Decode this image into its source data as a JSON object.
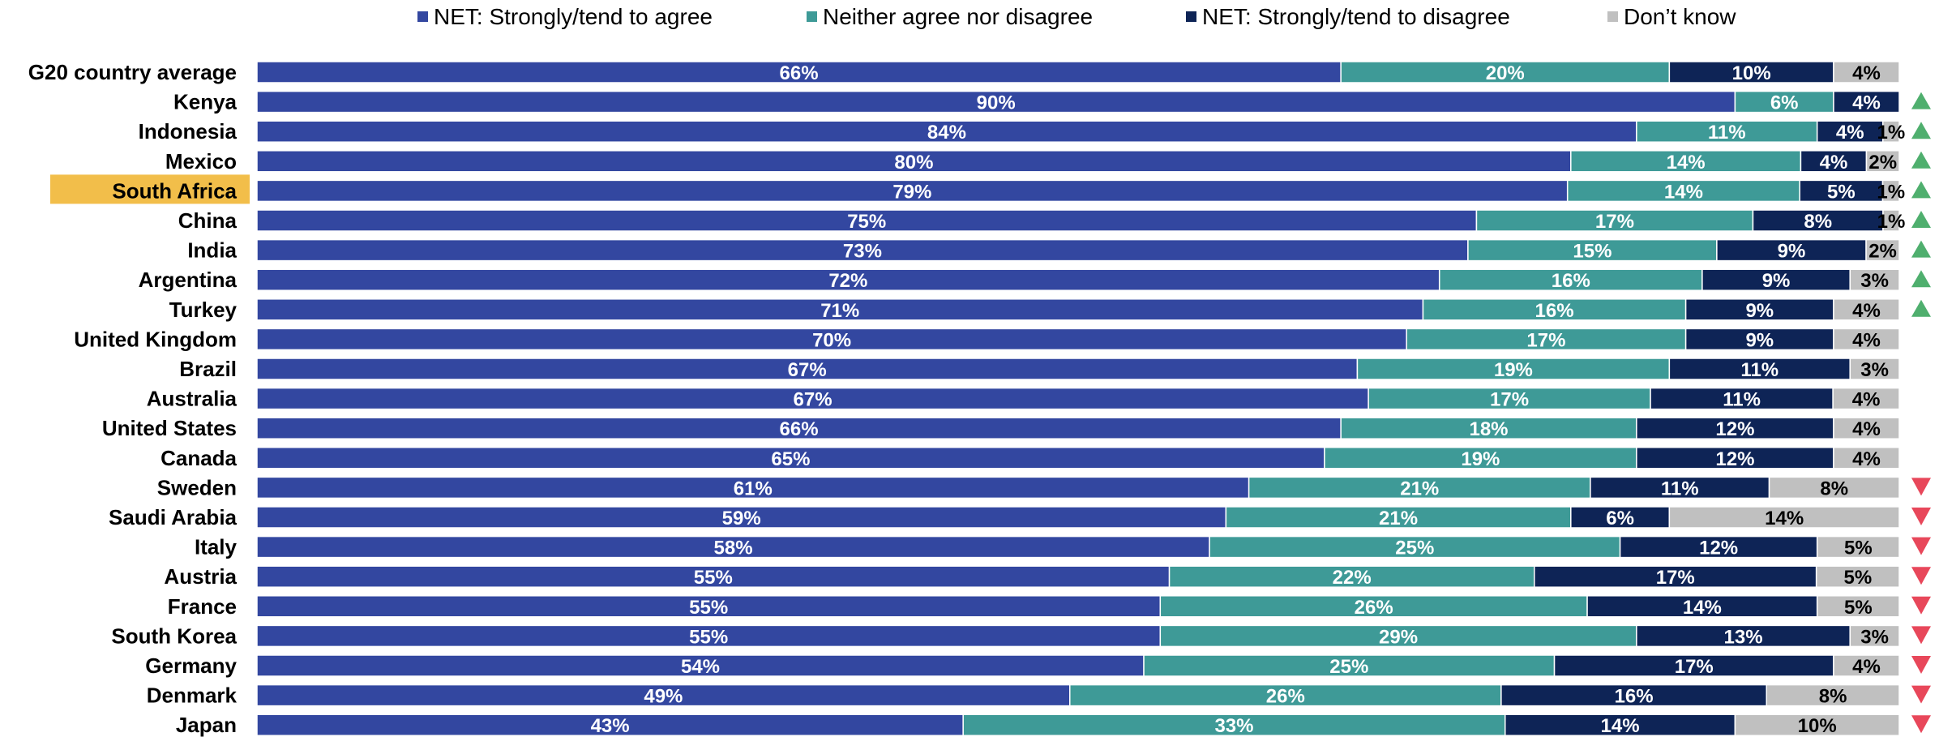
{
  "chart_data": {
    "type": "bar",
    "orientation": "horizontal",
    "stacked": "100%",
    "legend_position": "top",
    "categories": [
      "G20 country average",
      "Kenya",
      "Indonesia",
      "Mexico",
      "South Africa",
      "China",
      "India",
      "Argentina",
      "Turkey",
      "United Kingdom",
      "Brazil",
      "Australia",
      "United States",
      "Canada",
      "Sweden",
      "Saudi Arabia",
      "Italy",
      "Austria",
      "France",
      "South Korea",
      "Germany",
      "Denmark",
      "Japan"
    ],
    "highlighted_category": "South Africa",
    "series": [
      {
        "name": "NET: Strongly/tend to agree",
        "color": "#3347A0",
        "labels": [
          "66%",
          "90%",
          "84%",
          "80%",
          "79%",
          "75%",
          "73%",
          "72%",
          "71%",
          "70%",
          "67%",
          "67%",
          "66%",
          "65%",
          "61%",
          "59%",
          "58%",
          "55%",
          "55%",
          "55%",
          "54%",
          "49%",
          "43%"
        ]
      },
      {
        "name": "Neither agree nor disagree",
        "color": "#3E9A97",
        "labels": [
          "20%",
          "6%",
          "11%",
          "14%",
          "14%",
          "17%",
          "15%",
          "16%",
          "16%",
          "17%",
          "19%",
          "17%",
          "18%",
          "19%",
          "21%",
          "21%",
          "25%",
          "22%",
          "26%",
          "29%",
          "25%",
          "26%",
          "33%"
        ]
      },
      {
        "name": "NET: Strongly/tend to disagree",
        "color": "#0E2456",
        "labels": [
          "10%",
          "4%",
          "4%",
          "4%",
          "5%",
          "8%",
          "9%",
          "9%",
          "9%",
          "9%",
          "11%",
          "11%",
          "12%",
          "12%",
          "11%",
          "6%",
          "12%",
          "17%",
          "14%",
          "13%",
          "17%",
          "16%",
          "14%"
        ]
      },
      {
        "name": "Don’t know",
        "color": "#C0C0C0",
        "labels": [
          "4%",
          "",
          "1%",
          "2%",
          "1%",
          "1%",
          "2%",
          "3%",
          "4%",
          "4%",
          "3%",
          "4%",
          "4%",
          "4%",
          "8%",
          "14%",
          "5%",
          "5%",
          "5%",
          "3%",
          "4%",
          "8%",
          "10%"
        ]
      }
    ],
    "significance": [
      "",
      "up",
      "up",
      "up",
      "up",
      "up",
      "up",
      "up",
      "up",
      "",
      "",
      "",
      "",
      "",
      "down",
      "down",
      "down",
      "down",
      "down",
      "down",
      "down",
      "down",
      "down"
    ],
    "colors": {
      "up": "#4FAF6E",
      "down": "#E8475A",
      "highlight": "#F2BE4A"
    }
  }
}
